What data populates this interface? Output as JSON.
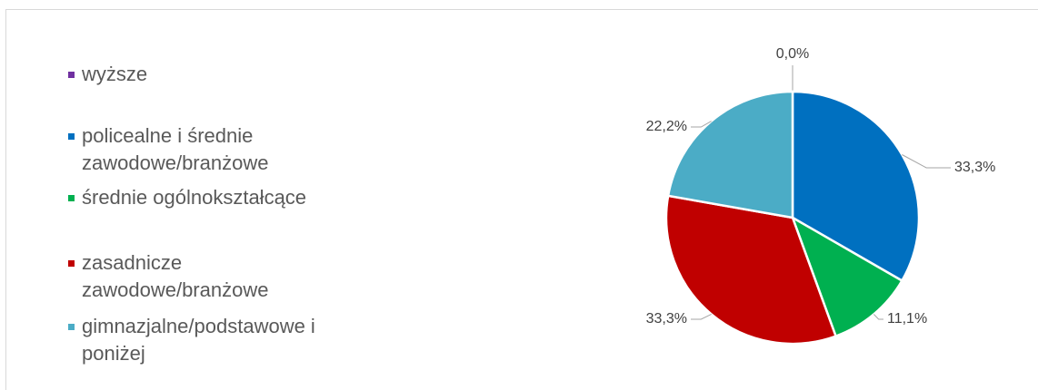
{
  "chart_data": {
    "type": "pie",
    "categories": [
      "wyższe",
      "policealne i średnie zawodowe/branżowe",
      "średnie ogólnokształcące",
      "zasadnicze zawodowe/branżowe",
      "gimnazjalne/podstawowe i poniżej"
    ],
    "values": [
      0.0,
      33.3,
      11.1,
      33.3,
      22.2
    ],
    "value_labels": [
      "0,0%",
      "33,3%",
      "11,1%",
      "33,3%",
      "22,2%"
    ],
    "colors": [
      "#7030a0",
      "#0070c0",
      "#00b050",
      "#c00000",
      "#4bacc6"
    ],
    "legend": "left"
  }
}
